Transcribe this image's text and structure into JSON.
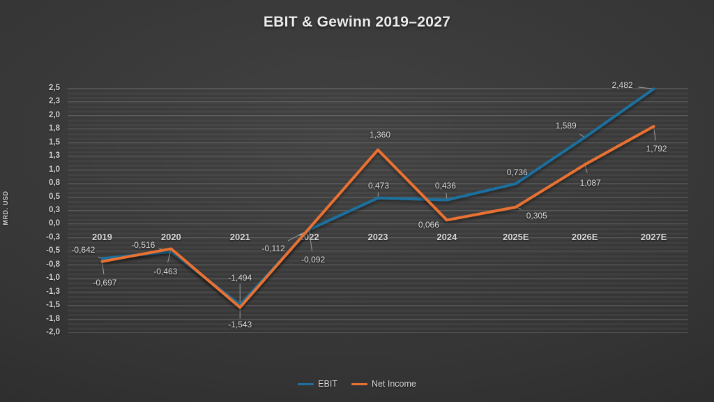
{
  "title": "EBIT & Gewinn 2019–2027",
  "chart_data": {
    "type": "line",
    "title": "EBIT & Gewinn 2019–2027",
    "categories": [
      "2019",
      "2020",
      "2021",
      "2022",
      "2023",
      "2024",
      "2025E",
      "2026E",
      "2027E"
    ],
    "series": [
      {
        "name": "EBIT",
        "color": "#1E6F9E",
        "values": [
          -0.642,
          -0.516,
          -1.494,
          -0.112,
          0.473,
          0.436,
          0.736,
          1.589,
          2.482
        ],
        "labels": [
          "-0,642",
          "-0,516",
          "-1,494",
          "-0,112",
          "0,473",
          "0,436",
          "0,736",
          "1,589",
          "2,482"
        ],
        "label_offsets": [
          [
            -27,
            -12
          ],
          [
            -40,
            -10
          ],
          [
            0,
            -39
          ],
          [
            -51,
            27
          ],
          [
            1,
            -18
          ],
          [
            -2,
            -21
          ],
          [
            2,
            -16
          ],
          [
            -27,
            -17
          ],
          [
            -45,
            -5
          ]
        ],
        "label_leaders": [
          true,
          true,
          true,
          true,
          true,
          true,
          false,
          true,
          true
        ]
      },
      {
        "name": "Net Income",
        "color": "#E97132",
        "values": [
          -0.697,
          -0.463,
          -1.543,
          -0.092,
          1.36,
          0.066,
          0.305,
          1.087,
          1.792
        ],
        "labels": [
          "-0,697",
          "-0,463",
          "-1,543",
          "-0,092",
          "1,360",
          "0,066",
          "0,305",
          "1,087",
          "1,792"
        ],
        "label_offsets": [
          [
            4,
            30
          ],
          [
            -8,
            33
          ],
          [
            0,
            25
          ],
          [
            6,
            44
          ],
          [
            3,
            -22
          ],
          [
            -26,
            7
          ],
          [
            30,
            12
          ],
          [
            8,
            26
          ],
          [
            4,
            32
          ]
        ],
        "label_leaders": [
          true,
          true,
          true,
          true,
          false,
          true,
          true,
          true,
          true
        ]
      }
    ],
    "y_axis": {
      "title": "MRD. USD",
      "min": -2.0,
      "max": 2.5,
      "step": 0.25,
      "tick_labels": [
        "2,5",
        "2,3",
        "2,0",
        "1,8",
        "1,5",
        "1,3",
        "1,0",
        "0,8",
        "0,5",
        "0,3",
        "0,0",
        "-0,3",
        "-0,5",
        "-0,8",
        "-1,0",
        "-1,3",
        "-1,5",
        "-1,8",
        "-2,0"
      ]
    },
    "legend_position": "bottom",
    "grid": true
  }
}
